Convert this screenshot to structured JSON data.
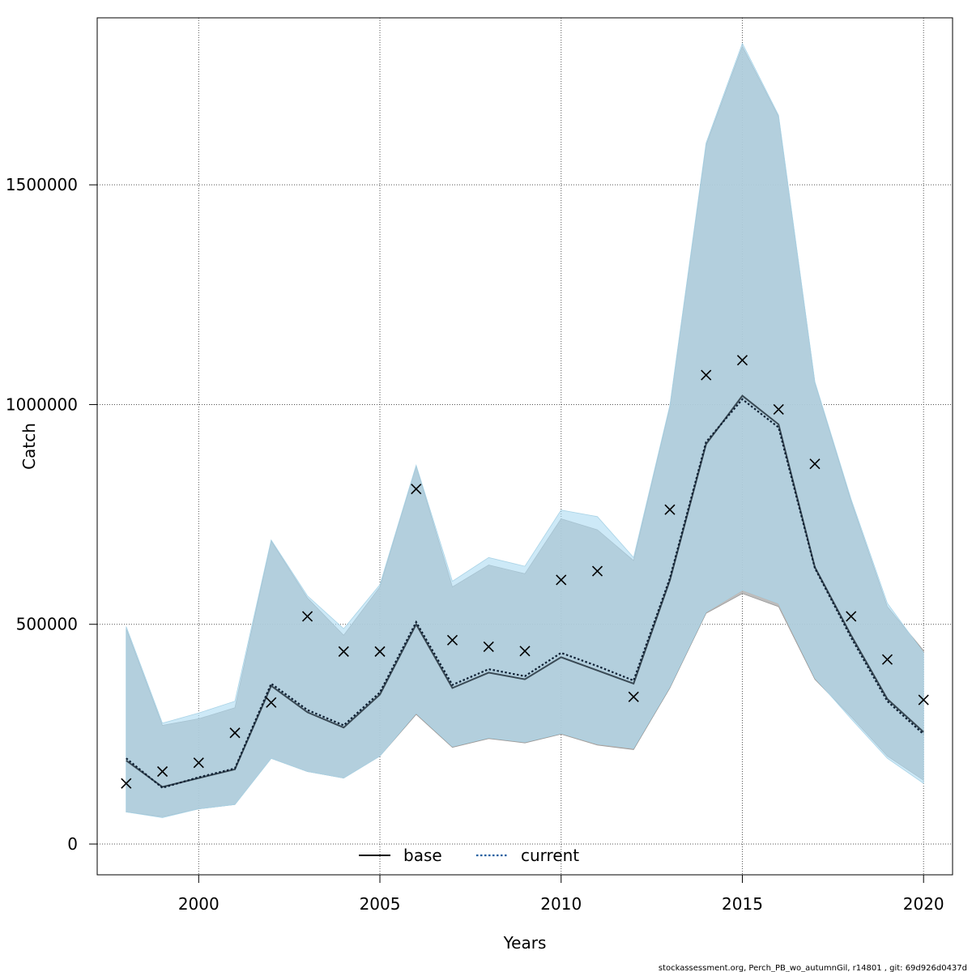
{
  "chart_data": {
    "type": "line",
    "xlabel": "Years",
    "ylabel": "Catch",
    "xlim": [
      1997.2,
      2020.8
    ],
    "ylim": [
      -70000,
      1880000
    ],
    "xticks": [
      2000,
      2005,
      2010,
      2015,
      2020
    ],
    "yticks": [
      0,
      500000,
      1000000,
      1500000
    ],
    "xtick_labels": [
      "2000",
      "2005",
      "2010",
      "2015",
      "2020"
    ],
    "ytick_labels": [
      "0",
      "500000",
      "1000000",
      "1500000"
    ],
    "grid": true,
    "legend_position": "bottom-center",
    "x": [
      1998,
      1999,
      2000,
      2001,
      2002,
      2003,
      2004,
      2005,
      2006,
      2007,
      2008,
      2009,
      2010,
      2011,
      2012,
      2013,
      2014,
      2015,
      2016,
      2017,
      2018,
      2019,
      2020
    ],
    "series": [
      {
        "name": "base",
        "line_style": "solid",
        "color": "#000000",
        "band_color": "#b0b0b0",
        "values": [
          190000,
          130000,
          150000,
          170000,
          360000,
          300000,
          265000,
          340000,
          500000,
          355000,
          390000,
          375000,
          425000,
          395000,
          365000,
          600000,
          910000,
          1020000,
          955000,
          630000,
          475000,
          330000,
          255000
        ],
        "lower": [
          73000,
          62000,
          80000,
          90000,
          195000,
          165000,
          150000,
          200000,
          295000,
          220000,
          240000,
          230000,
          250000,
          225000,
          215000,
          355000,
          525000,
          570000,
          540000,
          375000,
          290000,
          200000,
          145000
        ],
        "upper": [
          490000,
          270000,
          285000,
          310000,
          690000,
          560000,
          475000,
          585000,
          860000,
          585000,
          635000,
          615000,
          740000,
          715000,
          645000,
          995000,
          1590000,
          1815000,
          1655000,
          1050000,
          780000,
          540000,
          440000
        ]
      },
      {
        "name": "current",
        "line_style": "dotted",
        "color": "#1f5fa0",
        "band_color": "#aedcf2",
        "values": [
          195000,
          128000,
          152000,
          172000,
          365000,
          305000,
          270000,
          345000,
          505000,
          362000,
          398000,
          382000,
          435000,
          405000,
          372000,
          605000,
          915000,
          1012000,
          948000,
          628000,
          470000,
          325000,
          250000
        ],
        "lower": [
          73000,
          60000,
          80000,
          90000,
          195000,
          165000,
          150000,
          200000,
          298000,
          222000,
          242000,
          232000,
          252000,
          228000,
          218000,
          358000,
          528000,
          578000,
          548000,
          378000,
          285000,
          195000,
          138000
        ],
        "upper": [
          495000,
          275000,
          298000,
          325000,
          692000,
          565000,
          490000,
          590000,
          862000,
          598000,
          652000,
          632000,
          760000,
          745000,
          652000,
          998000,
          1595000,
          1822000,
          1658000,
          1052000,
          785000,
          548000,
          435000
        ]
      }
    ],
    "observed": {
      "marker": "x",
      "x": [
        1998,
        1999,
        2000,
        2001,
        2002,
        2003,
        2004,
        2005,
        2006,
        2007,
        2008,
        2009,
        2010,
        2011,
        2012,
        2013,
        2014,
        2015,
        2016,
        2017,
        2018,
        2019,
        2020
      ],
      "values": [
        138000,
        165000,
        185000,
        253000,
        322000,
        518000,
        438000,
        438000,
        808000,
        464000,
        449000,
        439000,
        601000,
        621000,
        335000,
        761000,
        1067000,
        1101000,
        989000,
        865000,
        518000,
        420000,
        328000
      ]
    },
    "legend": [
      {
        "label": "base",
        "style": "solid"
      },
      {
        "label": "current",
        "style": "dotted"
      }
    ]
  },
  "footer": {
    "text": "stockassessment.org, Perch_PB_wo_autumnGil, r14801 , git: 69d926d0437d"
  },
  "colors": {
    "band_overlap": "#a6c5d6",
    "base_band": "#b0b0b0",
    "current_band": "#aedcf2",
    "grid": "#555555"
  }
}
